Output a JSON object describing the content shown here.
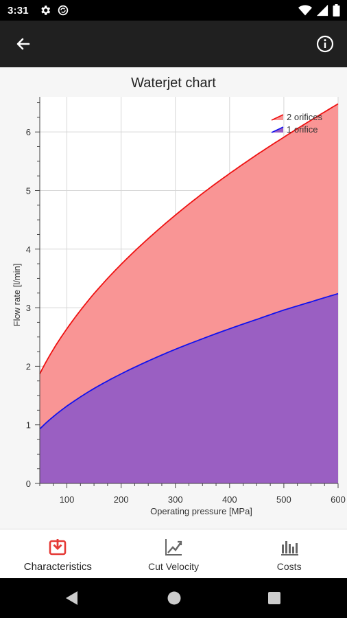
{
  "status_bar": {
    "time": "3:31",
    "left_icons": [
      "gear-icon",
      "sync-icon"
    ],
    "right_icons": [
      "wifi-icon",
      "signal-icon",
      "battery-icon"
    ]
  },
  "app_bar": {
    "back_icon": "arrow-left-icon",
    "info_icon": "info-circle-icon"
  },
  "chart_data": {
    "type": "area",
    "title": "Waterjet chart",
    "xlabel": "Operating pressure [MPa]",
    "ylabel": "Flow rate [l/min]",
    "xlim": [
      50,
      600
    ],
    "ylim": [
      0,
      6.6
    ],
    "x_ticks": [
      100,
      200,
      300,
      400,
      500,
      600
    ],
    "y_ticks": [
      0,
      1,
      2,
      3,
      4,
      5,
      6
    ],
    "grid": true,
    "legend_position": "top-right",
    "x": [
      50,
      100,
      150,
      200,
      250,
      300,
      350,
      400,
      450,
      500,
      550,
      600
    ],
    "series": [
      {
        "name": "2 orifices",
        "color": "#ee1111",
        "fill": "#f99595",
        "values": [
          1.87,
          2.64,
          3.24,
          3.74,
          4.18,
          4.58,
          4.95,
          5.29,
          5.61,
          5.91,
          6.2,
          6.48
        ]
      },
      {
        "name": "1 orifice",
        "color": "#1111ee",
        "fill": "#9a5fc2",
        "values": [
          0.93,
          1.32,
          1.62,
          1.87,
          2.09,
          2.29,
          2.47,
          2.64,
          2.8,
          2.96,
          3.1,
          3.24
        ]
      }
    ]
  },
  "bottom_nav": {
    "items": [
      {
        "label": "Characteristics",
        "icon": "download-box-icon",
        "active": true,
        "color": "#e53935"
      },
      {
        "label": "Cut Velocity",
        "icon": "trend-chart-icon",
        "active": false,
        "color": "#666666"
      },
      {
        "label": "Costs",
        "icon": "bar-chart-icon",
        "active": false,
        "color": "#666666"
      }
    ]
  },
  "system_nav": {
    "icons": [
      "back-triangle-icon",
      "home-circle-icon",
      "recents-square-icon"
    ]
  }
}
